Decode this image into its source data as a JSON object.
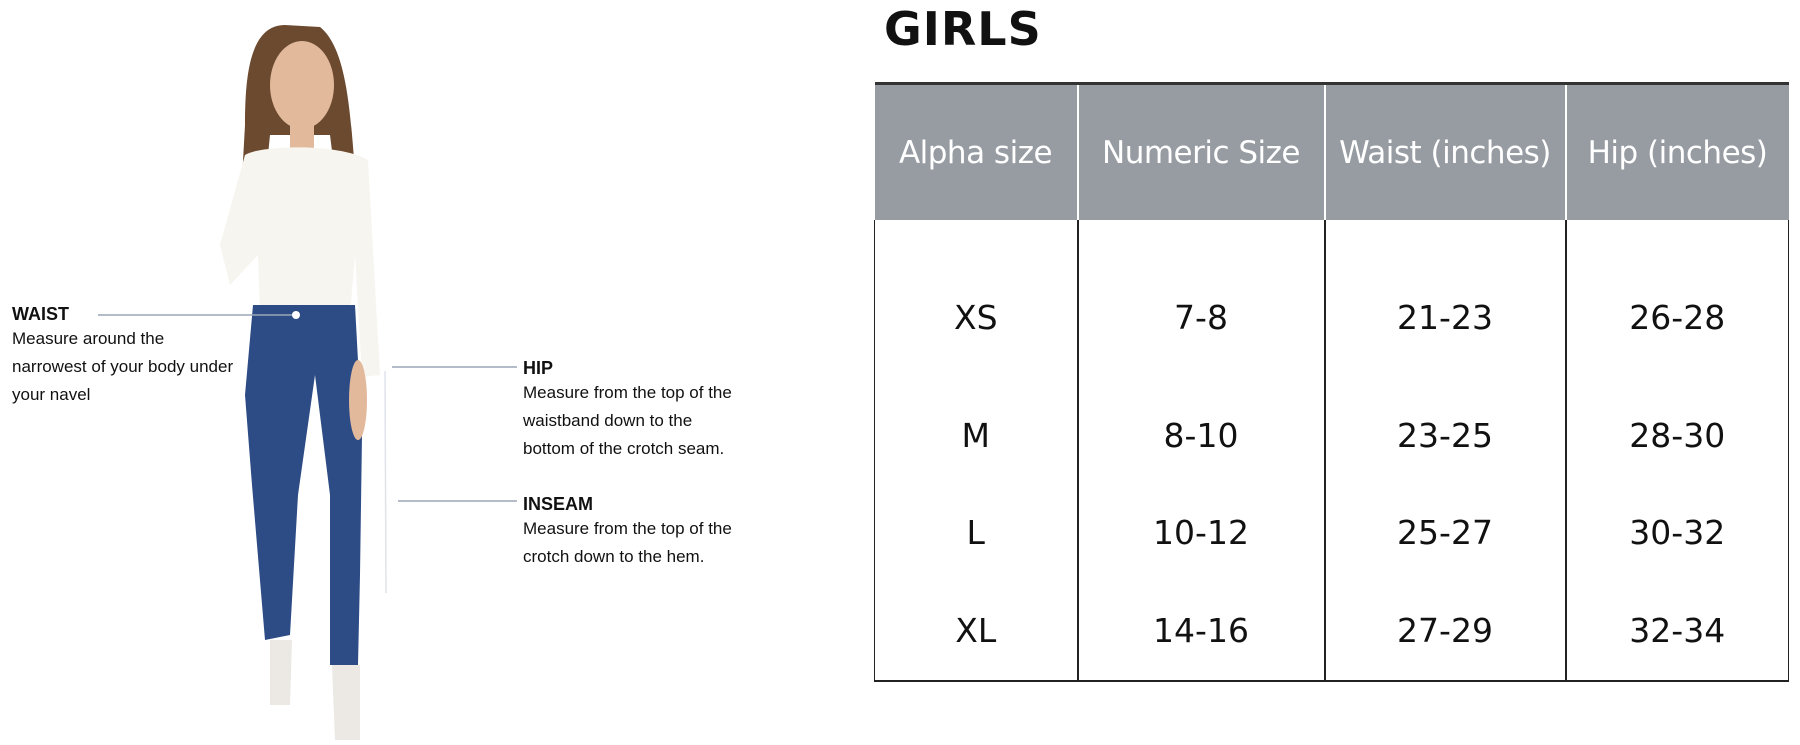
{
  "title": "GIRLS",
  "measurements": [
    {
      "name": "WAIST",
      "text": [
        "Measure around the",
        "narrowest of your body under",
        "your navel"
      ]
    },
    {
      "name": "HIP",
      "text": [
        "Measure from the top of the",
        "waistband down to the",
        "bottom of the crotch seam."
      ]
    },
    {
      "name": "INSEAM",
      "text": [
        "Measure from the top of the",
        "crotch down to the hem."
      ]
    }
  ],
  "table": {
    "headers": [
      "Alpha size",
      "Numeric Size",
      "Waist (inches)",
      "Hip (inches)"
    ],
    "rows": [
      [
        "XS",
        "7-8",
        "21-23",
        "26-28"
      ],
      [
        "M",
        "8-10",
        "23-25",
        "28-30"
      ],
      [
        "L",
        "10-12",
        "25-27",
        "30-32"
      ],
      [
        "XL",
        "14-16",
        "27-29",
        "32-34"
      ]
    ]
  },
  "colors": {
    "header_bg": "#979ca3",
    "denim": "#2d4c86",
    "shirt": "#f7f5ef",
    "hair": "#6b4a30"
  }
}
